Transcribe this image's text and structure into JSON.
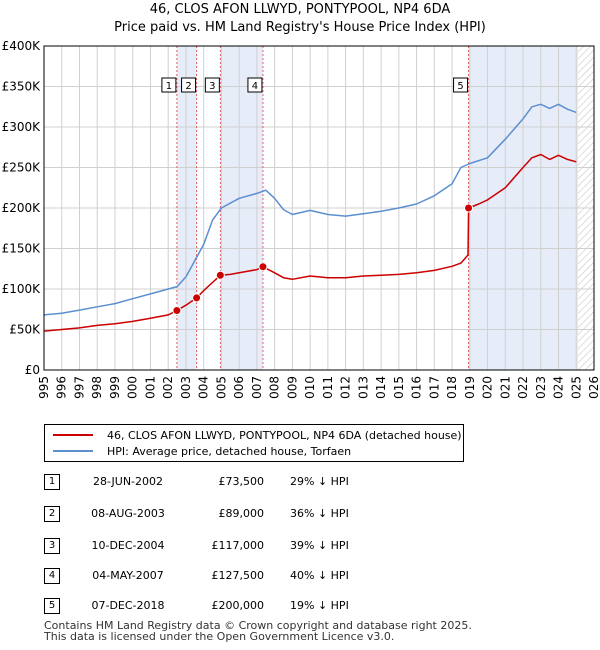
{
  "title_line1": "46, CLOS AFON LLWYD, PONTYPOOL, NP4 6DA",
  "title_line2": "Price paid vs. HM Land Registry's House Price Index (HPI)",
  "colors": {
    "price": "#cc0000",
    "hpi": "#5b8fd0",
    "shade": "#e6ecf8",
    "grid": "#d0d0d0",
    "vline": "#e06060"
  },
  "legend": {
    "price_label": "46, CLOS AFON LLWYD, PONTYPOOL, NP4 6DA (detached house)",
    "hpi_label": "HPI: Average price, detached house, Torfaen"
  },
  "transactions": [
    {
      "num": "1",
      "date": "28-JUN-2002",
      "price": "£73,500",
      "hpi": "29% ↓ HPI"
    },
    {
      "num": "2",
      "date": "08-AUG-2003",
      "price": "£89,000",
      "hpi": "36% ↓ HPI"
    },
    {
      "num": "3",
      "date": "10-DEC-2004",
      "price": "£117,000",
      "hpi": "39% ↓ HPI"
    },
    {
      "num": "4",
      "date": "04-MAY-2007",
      "price": "£127,500",
      "hpi": "40% ↓ HPI"
    },
    {
      "num": "5",
      "date": "07-DEC-2018",
      "price": "£200,000",
      "hpi": "19% ↓ HPI"
    }
  ],
  "footer_line1": "Contains HM Land Registry data © Crown copyright and database right 2025.",
  "footer_line2": "This data is licensed under the Open Government Licence v3.0.",
  "chart_data": {
    "type": "line",
    "title": "46, CLOS AFON LLWYD, PONTYPOOL, NP4 6DA — Price paid vs. HM Land Registry's House Price Index (HPI)",
    "xlabel": "",
    "ylabel": "",
    "xlim": [
      1995,
      2026
    ],
    "ylim": [
      0,
      400000
    ],
    "x_ticks": [
      "1995",
      "1996",
      "1997",
      "1998",
      "1999",
      "2000",
      "2001",
      "2002",
      "2003",
      "2004",
      "2005",
      "2006",
      "2007",
      "2008",
      "2009",
      "2010",
      "2011",
      "2012",
      "2013",
      "2014",
      "2015",
      "2016",
      "2017",
      "2018",
      "2019",
      "2020",
      "2021",
      "2022",
      "2023",
      "2024",
      "2025",
      "2026"
    ],
    "y_ticks": [
      {
        "value": 0,
        "label": "£0"
      },
      {
        "value": 50000,
        "label": "£50K"
      },
      {
        "value": 100000,
        "label": "£100K"
      },
      {
        "value": 150000,
        "label": "£150K"
      },
      {
        "value": 200000,
        "label": "£200K"
      },
      {
        "value": 250000,
        "label": "£250K"
      },
      {
        "value": 300000,
        "label": "£300K"
      },
      {
        "value": 350000,
        "label": "£350K"
      },
      {
        "value": 400000,
        "label": "£400K"
      }
    ],
    "shaded_ranges": [
      [
        2002.49,
        2003.6
      ],
      [
        2004.94,
        2007.34
      ],
      [
        2018.93,
        2025.1
      ]
    ],
    "hatched_from": 2025.1,
    "series": [
      {
        "name": "HPI: Average price, detached house, Torfaen",
        "x": [
          1995,
          1996,
          1997,
          1998,
          1999,
          2000,
          2001,
          2002,
          2002.5,
          2003,
          2003.6,
          2004,
          2004.5,
          2005,
          2006,
          2007,
          2007.5,
          2008,
          2008.5,
          2009,
          2010,
          2011,
          2012,
          2013,
          2014,
          2015,
          2016,
          2017,
          2018,
          2018.5,
          2019,
          2020,
          2021,
          2022,
          2022.5,
          2023,
          2023.5,
          2024,
          2024.5,
          2025
        ],
        "values": [
          68000,
          70000,
          74000,
          78000,
          82000,
          88000,
          94000,
          100000,
          103000,
          115000,
          139000,
          155000,
          185000,
          200000,
          212000,
          218000,
          222000,
          212000,
          198000,
          192000,
          197000,
          192000,
          190000,
          193000,
          196000,
          200000,
          205000,
          215000,
          230000,
          250000,
          255000,
          262000,
          285000,
          310000,
          325000,
          328000,
          323000,
          328000,
          322000,
          318000
        ]
      },
      {
        "name": "46, CLOS AFON LLWYD, PONTYPOOL, NP4 6DA (detached house)",
        "x": [
          1995,
          1996,
          1997,
          1998,
          1999,
          2000,
          2001,
          2002,
          2002.49,
          2003,
          2003.6,
          2004,
          2004.5,
          2004.94,
          2005.5,
          2006,
          2007,
          2007.34,
          2008,
          2008.5,
          2009,
          2010,
          2011,
          2012,
          2013,
          2014,
          2015,
          2016,
          2017,
          2018,
          2018.5,
          2018.9,
          2018.93,
          2019.5,
          2020,
          2021,
          2022,
          2022.5,
          2023,
          2023.5,
          2024,
          2024.5,
          2025
        ],
        "values": [
          48000,
          50000,
          52000,
          55000,
          57000,
          60000,
          64000,
          68000,
          73500,
          80000,
          89000,
          98000,
          108000,
          117000,
          118000,
          120000,
          124000,
          127500,
          120000,
          114000,
          112000,
          116000,
          114000,
          114000,
          116000,
          117000,
          118000,
          120000,
          123000,
          128000,
          132000,
          142000,
          200000,
          205000,
          210000,
          225000,
          250000,
          262000,
          266000,
          260000,
          265000,
          260000,
          257000
        ]
      }
    ],
    "sales": [
      {
        "num": "1",
        "x": 2002.49,
        "value": 73500
      },
      {
        "num": "2",
        "x": 2003.6,
        "value": 89000
      },
      {
        "num": "3",
        "x": 2004.94,
        "value": 117000
      },
      {
        "num": "4",
        "x": 2007.34,
        "value": 127500
      },
      {
        "num": "5",
        "x": 2018.93,
        "value": 200000
      }
    ]
  }
}
